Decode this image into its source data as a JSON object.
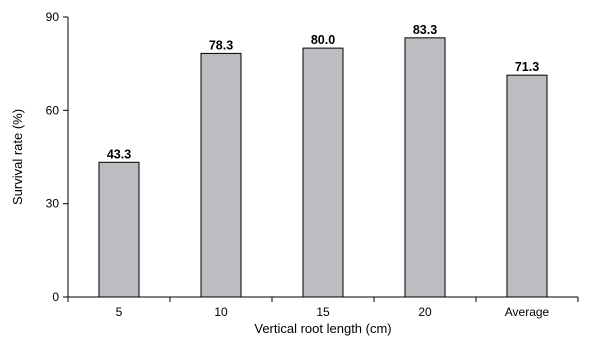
{
  "chart_data": {
    "type": "bar",
    "categories": [
      "5",
      "10",
      "15",
      "20",
      "Average"
    ],
    "values": [
      43.3,
      78.3,
      80.0,
      83.3,
      71.3
    ],
    "value_labels": [
      "43.3",
      "78.3",
      "80.0",
      "83.3",
      "71.3"
    ],
    "xlabel": "Vertical root length (cm)",
    "ylabel": "Survival rate (%)",
    "ylim": [
      0,
      90
    ],
    "yticks": [
      0,
      30,
      60,
      90
    ],
    "grid": false,
    "colors": {
      "bar_fill": "#bcbdc0",
      "bar_stroke": "#000000",
      "axis": "#000000"
    }
  }
}
